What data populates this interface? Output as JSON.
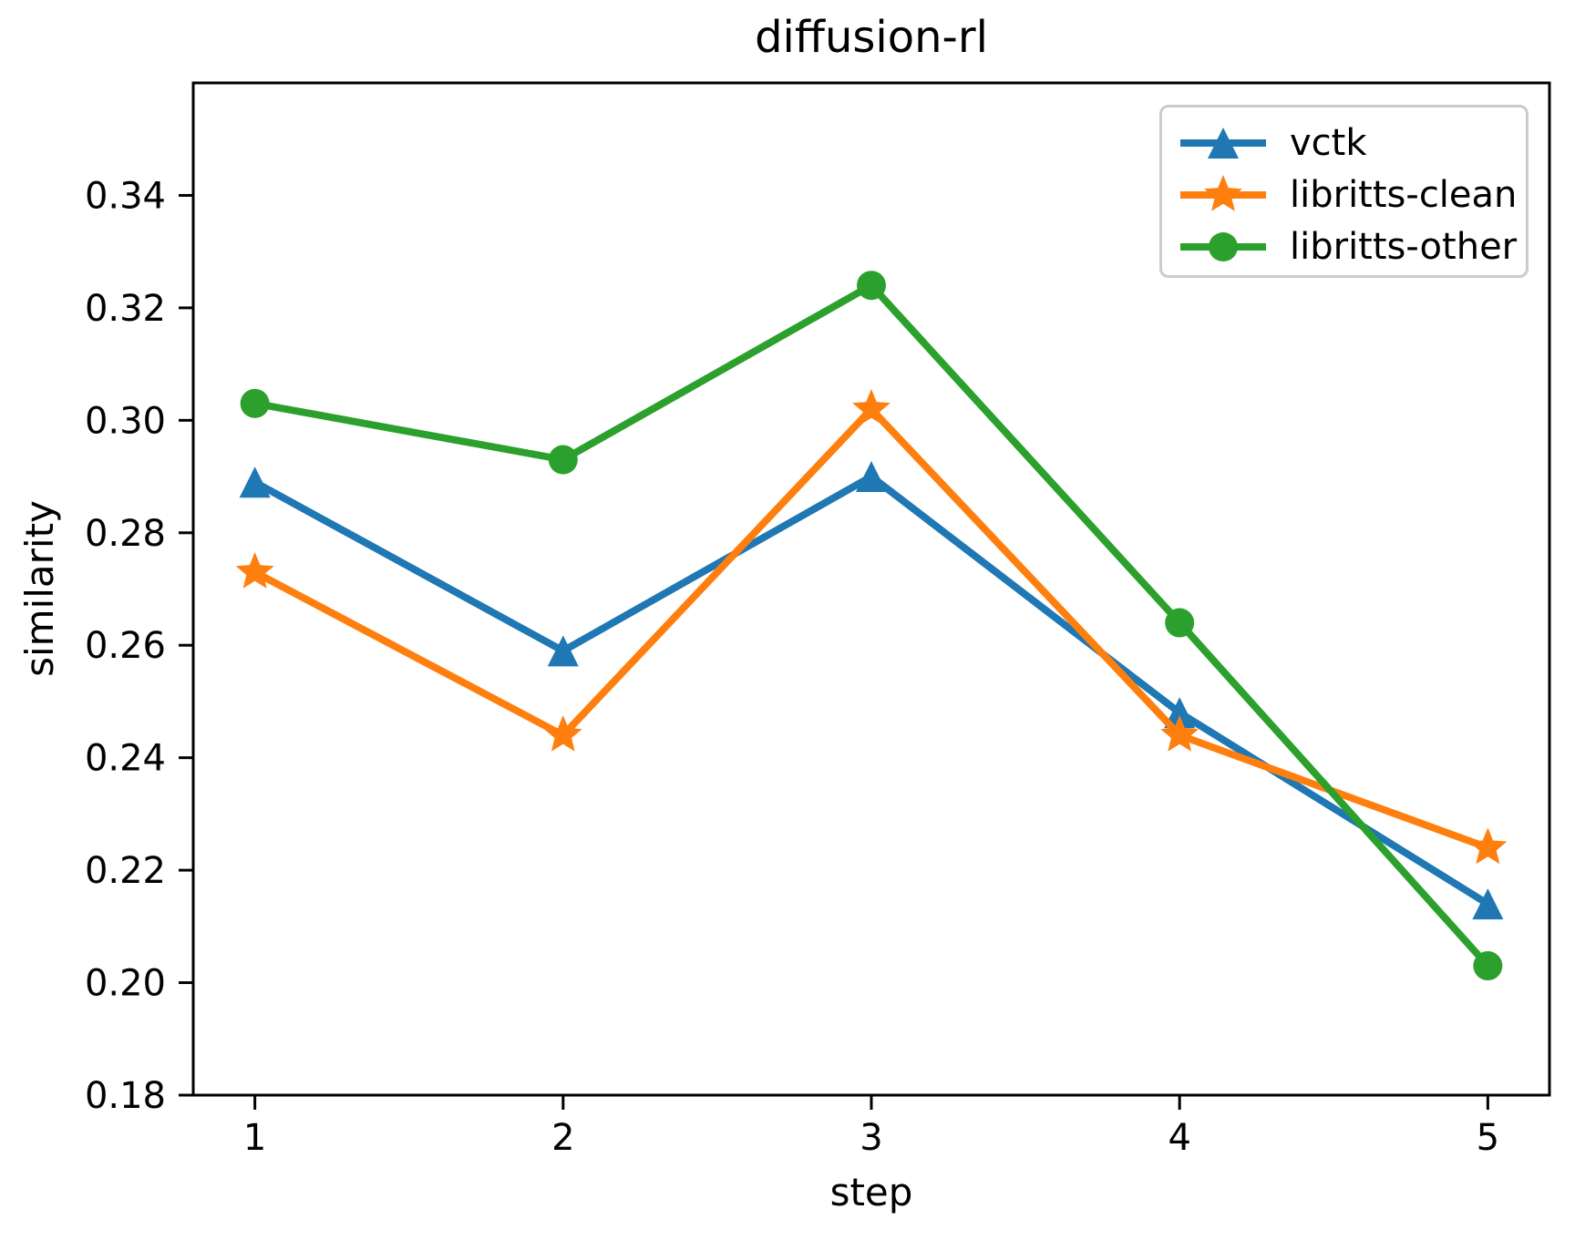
{
  "chart_data": {
    "type": "line",
    "title": "diffusion-rl",
    "xlabel": "step",
    "ylabel": "similarity",
    "x": [
      1,
      2,
      3,
      4,
      5
    ],
    "xlim": [
      0.8,
      5.2
    ],
    "ylim": [
      0.18,
      0.36
    ],
    "xticks": [
      1,
      2,
      3,
      4,
      5
    ],
    "xtick_labels": [
      "1",
      "2",
      "3",
      "4",
      "5"
    ],
    "yticks": [
      0.18,
      0.2,
      0.22,
      0.24,
      0.26,
      0.28,
      0.3,
      0.32,
      0.34
    ],
    "ytick_labels": [
      "0.18",
      "0.20",
      "0.22",
      "0.24",
      "0.26",
      "0.28",
      "0.30",
      "0.32",
      "0.34"
    ],
    "grid": false,
    "legend_position": "upper right",
    "axis_color": "#000000",
    "legend_edge_color": "#cccccc",
    "series": [
      {
        "name": "vctk",
        "color": "#1f77b4",
        "marker": "triangle",
        "values": [
          0.289,
          0.259,
          0.29,
          0.248,
          0.214
        ]
      },
      {
        "name": "libritts-clean",
        "color": "#ff7f0e",
        "marker": "star",
        "values": [
          0.273,
          0.244,
          0.302,
          0.244,
          0.224
        ]
      },
      {
        "name": "libritts-other",
        "color": "#2ca02c",
        "marker": "circle",
        "values": [
          0.303,
          0.293,
          0.324,
          0.264,
          0.203
        ]
      }
    ]
  }
}
